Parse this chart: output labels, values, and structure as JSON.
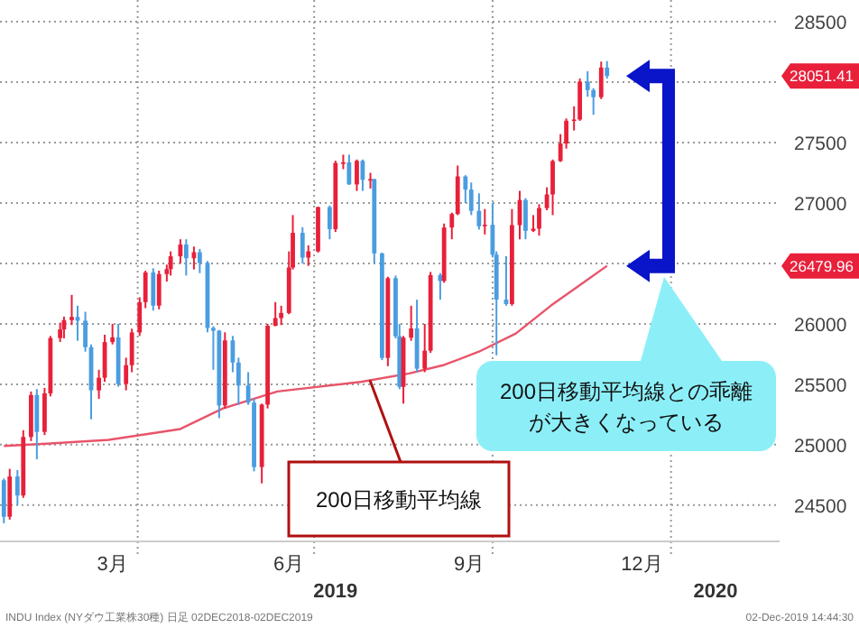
{
  "chart_data": {
    "type": "candlestick",
    "x": [
      "2019-01-22",
      "2019-01-25",
      "2019-01-29",
      "2019-02-01",
      "2019-02-05",
      "2019-02-08",
      "2019-02-12",
      "2019-02-15",
      "2019-02-20",
      "2019-02-22",
      "2019-02-26",
      "2019-03-01",
      "2019-03-05",
      "2019-03-08",
      "2019-03-12",
      "2019-03-15",
      "2019-03-19",
      "2019-03-22",
      "2019-03-26",
      "2019-03-29",
      "2019-04-02",
      "2019-04-05",
      "2019-04-09",
      "2019-04-12",
      "2019-04-16",
      "2019-04-18",
      "2019-04-23",
      "2019-04-26",
      "2019-04-30",
      "2019-05-03",
      "2019-05-07",
      "2019-05-10",
      "2019-05-13",
      "2019-05-16",
      "2019-05-20",
      "2019-05-23",
      "2019-05-28",
      "2019-05-31",
      "2019-06-04",
      "2019-06-07",
      "2019-06-11",
      "2019-06-14",
      "2019-06-18",
      "2019-06-20",
      "2019-06-25",
      "2019-06-28",
      "2019-07-03",
      "2019-07-09",
      "2019-07-12",
      "2019-07-16",
      "2019-07-19",
      "2019-07-23",
      "2019-07-26",
      "2019-07-30",
      "2019-08-01",
      "2019-08-05",
      "2019-08-08",
      "2019-08-12",
      "2019-08-14",
      "2019-08-16",
      "2019-08-20",
      "2019-08-23",
      "2019-08-27",
      "2019-08-30",
      "2019-09-04",
      "2019-09-06",
      "2019-09-10",
      "2019-09-13",
      "2019-09-17",
      "2019-09-20",
      "2019-09-24",
      "2019-09-27",
      "2019-10-01",
      "2019-10-03",
      "2019-10-08",
      "2019-10-11",
      "2019-10-15",
      "2019-10-18",
      "2019-10-22",
      "2019-10-25",
      "2019-10-29",
      "2019-11-01",
      "2019-11-05",
      "2019-11-08",
      "2019-11-12",
      "2019-11-15",
      "2019-11-19",
      "2019-11-22",
      "2019-11-26",
      "2019-11-29"
    ],
    "ohlc": [
      [
        24706,
        24720,
        24350,
        24404
      ],
      [
        24404,
        24800,
        24380,
        24737
      ],
      [
        24737,
        24790,
        24500,
        24580
      ],
      [
        24580,
        25120,
        24560,
        25064
      ],
      [
        25064,
        25440,
        25030,
        25411
      ],
      [
        25411,
        25460,
        24880,
        25106
      ],
      [
        25106,
        25470,
        25080,
        25425
      ],
      [
        25425,
        25900,
        25400,
        25883
      ],
      [
        25883,
        26010,
        25850,
        25954
      ],
      [
        25954,
        26060,
        25880,
        26031
      ],
      [
        26031,
        26240,
        25990,
        26057
      ],
      [
        26057,
        26150,
        25860,
        26026
      ],
      [
        26026,
        26100,
        25770,
        25807
      ],
      [
        25807,
        25830,
        25210,
        25450
      ],
      [
        25450,
        25620,
        25380,
        25554
      ],
      [
        25554,
        25910,
        25520,
        25849
      ],
      [
        25849,
        26000,
        25830,
        25888
      ],
      [
        25888,
        26000,
        25480,
        25502
      ],
      [
        25502,
        25720,
        25450,
        25658
      ],
      [
        25658,
        25960,
        25600,
        25929
      ],
      [
        25929,
        26220,
        25900,
        26180
      ],
      [
        26180,
        26440,
        26130,
        26425
      ],
      [
        26425,
        26460,
        26110,
        26151
      ],
      [
        26151,
        26440,
        26120,
        26412
      ],
      [
        26412,
        26490,
        26350,
        26453
      ],
      [
        26453,
        26600,
        26400,
        26559
      ],
      [
        26559,
        26700,
        26500,
        26656
      ],
      [
        26656,
        26700,
        26400,
        26543
      ],
      [
        26543,
        26640,
        26450,
        26593
      ],
      [
        26593,
        26620,
        26420,
        26505
      ],
      [
        26505,
        26520,
        25930,
        25966
      ],
      [
        25966,
        25980,
        25620,
        25943
      ],
      [
        25943,
        25950,
        25220,
        25325
      ],
      [
        25325,
        25930,
        25300,
        25863
      ],
      [
        25863,
        25900,
        25600,
        25680
      ],
      [
        25680,
        25720,
        25330,
        25490
      ],
      [
        25490,
        25600,
        25330,
        25348
      ],
      [
        25348,
        25380,
        24780,
        24815
      ],
      [
        24815,
        25340,
        24680,
        25332
      ],
      [
        25332,
        26000,
        25300,
        25984
      ],
      [
        25984,
        26180,
        25980,
        26048
      ],
      [
        26048,
        26150,
        25990,
        26090
      ],
      [
        26090,
        26600,
        26080,
        26466
      ],
      [
        26466,
        26900,
        26450,
        26753
      ],
      [
        26753,
        26800,
        26500,
        26548
      ],
      [
        26548,
        26650,
        26480,
        26600
      ],
      [
        26600,
        26970,
        26590,
        26966
      ],
      [
        26966,
        26980,
        26700,
        26784
      ],
      [
        26784,
        27350,
        26760,
        27332
      ],
      [
        27332,
        27400,
        27280,
        27336
      ],
      [
        27336,
        27400,
        27150,
        27154
      ],
      [
        27154,
        27360,
        27100,
        27349
      ],
      [
        27349,
        27360,
        27100,
        27192
      ],
      [
        27192,
        27250,
        27120,
        27198
      ],
      [
        27198,
        27200,
        26500,
        26583
      ],
      [
        26583,
        26590,
        25700,
        25718
      ],
      [
        25718,
        26390,
        25650,
        26378
      ],
      [
        26378,
        26400,
        25880,
        25898
      ],
      [
        25898,
        26000,
        25460,
        25479
      ],
      [
        25479,
        25900,
        25340,
        25886
      ],
      [
        25886,
        26150,
        25860,
        25962
      ],
      [
        25962,
        26200,
        25600,
        25629
      ],
      [
        25629,
        26000,
        25600,
        25778
      ],
      [
        25778,
        26430,
        25760,
        26403
      ],
      [
        26403,
        26420,
        26200,
        26355
      ],
      [
        26355,
        26830,
        26340,
        26797
      ],
      [
        26797,
        26920,
        26700,
        26909
      ],
      [
        26909,
        27310,
        26900,
        27220
      ],
      [
        27220,
        27230,
        27000,
        27111
      ],
      [
        27111,
        27170,
        26900,
        26935
      ],
      [
        26935,
        27080,
        26780,
        26808
      ],
      [
        26808,
        26950,
        26740,
        26820
      ],
      [
        26820,
        27000,
        26550,
        26573
      ],
      [
        26573,
        26600,
        25740,
        26201
      ],
      [
        26201,
        26560,
        26150,
        26164
      ],
      [
        26164,
        26950,
        26150,
        26817
      ],
      [
        26817,
        27100,
        26700,
        27025
      ],
      [
        27025,
        27040,
        26700,
        26770
      ],
      [
        26770,
        26900,
        26760,
        26788
      ],
      [
        26788,
        26990,
        26730,
        26958
      ],
      [
        26958,
        27130,
        26940,
        27071
      ],
      [
        27071,
        27360,
        26900,
        27347
      ],
      [
        27347,
        27570,
        27340,
        27492
      ],
      [
        27492,
        27700,
        27450,
        27681
      ],
      [
        27681,
        27800,
        27600,
        27691
      ],
      [
        27691,
        28030,
        27680,
        28005
      ],
      [
        28005,
        28090,
        27880,
        27934
      ],
      [
        27934,
        27950,
        27730,
        27876
      ],
      [
        27876,
        28170,
        27860,
        28121
      ],
      [
        28121,
        28175,
        28030,
        28051.41
      ]
    ],
    "colors": [
      "#4a9de0",
      "#e8203a",
      "#4a9de0",
      "#e8203a",
      "#e8203a",
      "#4a9de0",
      "#e8203a",
      "#e8203a",
      "#e8203a",
      "#e8203a",
      "#e8203a",
      "#4a9de0",
      "#4a9de0",
      "#4a9de0",
      "#e8203a",
      "#e8203a",
      "#e8203a",
      "#4a9de0",
      "#e8203a",
      "#e8203a",
      "#e8203a",
      "#e8203a",
      "#4a9de0",
      "#e8203a",
      "#e8203a",
      "#e8203a",
      "#e8203a",
      "#4a9de0",
      "#e8203a",
      "#4a9de0",
      "#4a9de0",
      "#4a9de0",
      "#4a9de0",
      "#e8203a",
      "#4a9de0",
      "#4a9de0",
      "#4a9de0",
      "#4a9de0",
      "#e8203a",
      "#e8203a",
      "#e8203a",
      "#e8203a",
      "#e8203a",
      "#e8203a",
      "#4a9de0",
      "#e8203a",
      "#e8203a",
      "#4a9de0",
      "#e8203a",
      "#e8203a",
      "#4a9de0",
      "#e8203a",
      "#4a9de0",
      "#e8203a",
      "#4a9de0",
      "#4a9de0",
      "#e8203a",
      "#4a9de0",
      "#4a9de0",
      "#e8203a",
      "#e8203a",
      "#4a9de0",
      "#e8203a",
      "#e8203a",
      "#4a9de0",
      "#e8203a",
      "#e8203a",
      "#e8203a",
      "#4a9de0",
      "#4a9de0",
      "#4a9de0",
      "#e8203a",
      "#4a9de0",
      "#4a9de0",
      "#4a9de0",
      "#e8203a",
      "#e8203a",
      "#4a9de0",
      "#e8203a",
      "#e8203a",
      "#e8203a",
      "#e8203a",
      "#e8203a",
      "#e8203a",
      "#e8203a",
      "#e8203a",
      "#4a9de0",
      "#4a9de0",
      "#e8203a",
      "#4a9de0"
    ],
    "series": [
      {
        "type": "line",
        "name": "200日移動平均線",
        "color": "#e8546a",
        "x": [
          "2019-01-22",
          "2019-02-15",
          "2019-03-17",
          "2019-04-23",
          "2019-05-15",
          "2019-06-12",
          "2019-07-25",
          "2019-08-19",
          "2019-09-06",
          "2019-09-24",
          "2019-10-13",
          "2019-10-31",
          "2019-11-15",
          "2019-11-29"
        ],
        "values": [
          24990,
          25010,
          25040,
          25130,
          25300,
          25440,
          25520,
          25590,
          25660,
          25770,
          25920,
          26150,
          26320,
          26479.96
        ]
      }
    ],
    "xlim": [
      "2019-01-20",
      "2020-02-26"
    ],
    "xticks": [
      {
        "value": "2019-03-19",
        "label": "3月"
      },
      {
        "value": "2019-04-01",
        "label": null
      },
      {
        "value": "2019-06-18",
        "label": "6月"
      },
      {
        "value": "2019-07-01",
        "label": null
      },
      {
        "value": "2019-09-19",
        "label": "9月"
      },
      {
        "value": "2019-10-01",
        "label": null
      },
      {
        "value": "2019-12-17",
        "label": "12月"
      },
      {
        "value": "2020-01-01",
        "label": null
      }
    ],
    "ylim": [
      24200,
      28680
    ],
    "yticks": [
      24500,
      25000,
      25500,
      26000,
      {
        "value": 26500,
        "label": null
      },
      27000,
      27500,
      {
        "value": 28000,
        "label": null
      },
      28500
    ],
    "grid": true,
    "annotations": [
      "28051.41",
      "26479.96",
      "200日移動平均線との乖離が大きくなっている",
      "2019",
      "2020",
      "INDU Index (NYダウ工業株30種) 日足 02DEC2018-02DEC2019",
      "02-Dec-2019 14:44:30"
    ]
  }
}
